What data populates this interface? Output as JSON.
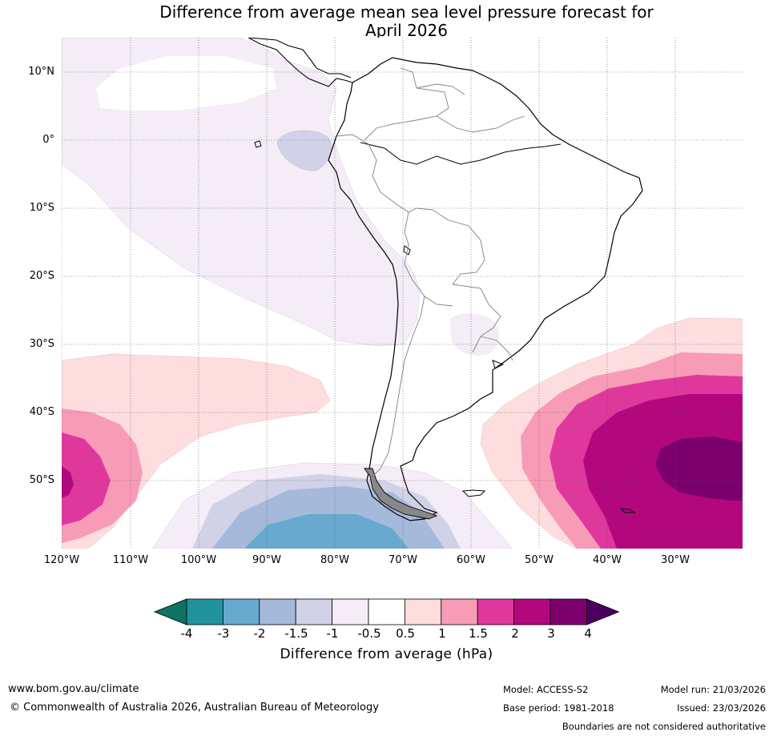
{
  "title": {
    "line1": "Difference from average mean sea level pressure forecast for",
    "line2": "April 2026"
  },
  "map": {
    "lat_labels": [
      "10°N",
      "0°",
      "10°S",
      "20°S",
      "30°S",
      "40°S",
      "50°S"
    ],
    "lon_labels": [
      "120°W",
      "110°W",
      "100°W",
      "90°W",
      "80°W",
      "70°W",
      "60°W",
      "50°W",
      "40°W",
      "30°W"
    ]
  },
  "colorbar": {
    "ticks": [
      "-4",
      "-3",
      "-2",
      "-1.5",
      "-1",
      "-0.5",
      "0.5",
      "1",
      "1.5",
      "2",
      "3",
      "4"
    ],
    "colors": [
      "#0f7364",
      "#21929c",
      "#67a9cf",
      "#a5b9da",
      "#d1d2e7",
      "#f4ecf6",
      "#ffffff",
      "#fddddd",
      "#f89bb7",
      "#df389d",
      "#b3077e",
      "#7b006e",
      "#4a0060"
    ],
    "label": "Difference from average (hPa)"
  },
  "footer": {
    "url": "www.bom.gov.au/climate",
    "copyright": "© Commonwealth of Australia 2026, Australian Bureau of Meteorology",
    "model": "Model: ACCESS-S2",
    "base_period": "Base period: 1981-2018",
    "model_run": "Model run: 21/03/2026",
    "issued": "Issued: 23/03/2026",
    "disclaimer": "Boundaries are not considered authoritative"
  }
}
